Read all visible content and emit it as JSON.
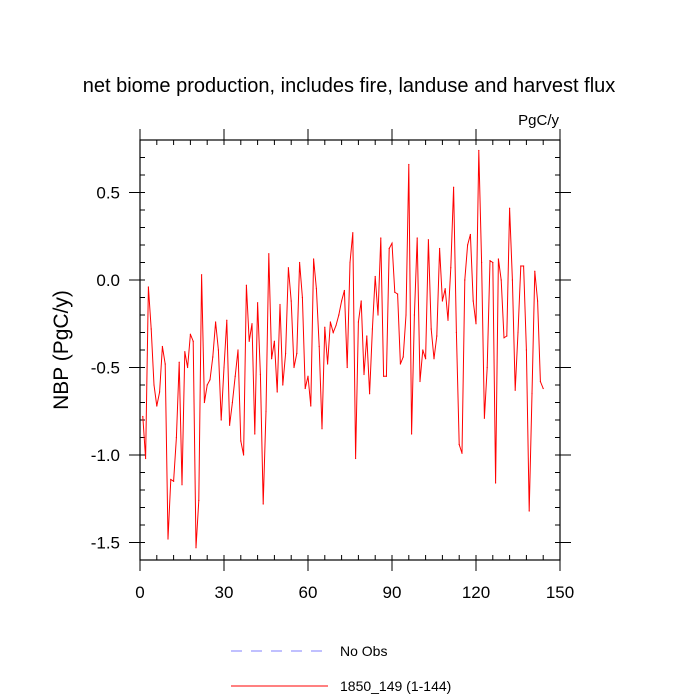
{
  "chart_data": {
    "type": "line",
    "title": "net biome production, includes fire, landuse and harvest flux",
    "units_label": "PgC/y",
    "xlabel": "",
    "ylabel": "NBP  (PgC/y)",
    "xlim": [
      0,
      150
    ],
    "ylim": [
      -1.6,
      0.8
    ],
    "x_major_ticks": [
      0,
      30,
      60,
      90,
      120,
      150
    ],
    "x_tick_labels": [
      "0",
      "30",
      "60",
      "90",
      "120",
      "150"
    ],
    "x_minor_step": 6,
    "y_major_ticks": [
      -1.5,
      -1.0,
      -0.5,
      0.0,
      0.5
    ],
    "y_tick_labels": [
      "-1.5",
      "-1.0",
      "-0.5",
      "0.0",
      "0.5"
    ],
    "y_minor_step": 0.1,
    "legend_position": "bottom",
    "legend": [
      {
        "label": "No Obs",
        "color": "#8080ff",
        "style": "dashed"
      },
      {
        "label": "1850_149 (1-144)",
        "color": "#ff0000",
        "style": "solid"
      }
    ],
    "series": [
      {
        "name": "1850_149 (1-144)",
        "color": "#ff0000",
        "x": [
          1,
          2,
          3,
          4,
          5,
          6,
          7,
          8,
          9,
          10,
          11,
          12,
          13,
          14,
          15,
          16,
          17,
          18,
          19,
          20,
          21,
          22,
          23,
          24,
          25,
          26,
          27,
          28,
          29,
          30,
          31,
          32,
          33,
          34,
          35,
          36,
          37,
          38,
          39,
          40,
          41,
          42,
          43,
          44,
          45,
          46,
          47,
          48,
          49,
          50,
          51,
          52,
          53,
          54,
          55,
          56,
          57,
          58,
          59,
          60,
          61,
          62,
          63,
          64,
          65,
          66,
          67,
          68,
          69,
          70,
          71,
          72,
          73,
          74,
          75,
          76,
          77,
          78,
          79,
          80,
          81,
          82,
          83,
          84,
          85,
          86,
          87,
          88,
          89,
          90,
          91,
          92,
          93,
          94,
          95,
          96,
          97,
          98,
          99,
          100,
          101,
          102,
          103,
          104,
          105,
          106,
          107,
          108,
          109,
          110,
          111,
          112,
          113,
          114,
          115,
          116,
          117,
          118,
          119,
          120,
          121,
          122,
          123,
          124,
          125,
          126,
          127,
          128,
          129,
          130,
          131,
          132,
          133,
          134,
          135,
          136,
          137,
          138,
          139,
          140,
          141,
          142,
          143,
          144
        ],
        "values": [
          -0.78,
          -1.02,
          -0.04,
          -0.28,
          -0.6,
          -0.72,
          -0.64,
          -0.38,
          -0.48,
          -1.48,
          -1.14,
          -1.15,
          -0.9,
          -0.47,
          -1.17,
          -0.41,
          -0.5,
          -0.31,
          -0.35,
          -1.53,
          -1.26,
          0.03,
          -0.7,
          -0.6,
          -0.57,
          -0.44,
          -0.24,
          -0.4,
          -0.8,
          -0.5,
          -0.23,
          -0.83,
          -0.7,
          -0.55,
          -0.4,
          -0.92,
          -1.0,
          -0.03,
          -0.35,
          -0.25,
          -0.88,
          -0.13,
          -0.54,
          -1.28,
          -0.75,
          0.15,
          -0.45,
          -0.35,
          -0.64,
          -0.14,
          -0.6,
          -0.42,
          0.07,
          -0.12,
          -0.5,
          -0.42,
          0.1,
          -0.1,
          -0.62,
          -0.55,
          -0.72,
          0.12,
          -0.05,
          -0.38,
          -0.85,
          -0.27,
          -0.48,
          -0.24,
          -0.3,
          -0.26,
          -0.2,
          -0.12,
          -0.06,
          -0.5,
          0.1,
          0.27,
          -1.02,
          -0.24,
          -0.12,
          -0.54,
          -0.32,
          -0.65,
          -0.28,
          0.02,
          -0.2,
          0.24,
          -0.55,
          -0.55,
          0.18,
          0.21,
          -0.07,
          -0.08,
          -0.48,
          -0.44,
          -0.2,
          0.66,
          -0.88,
          -0.2,
          0.24,
          -0.58,
          -0.4,
          -0.45,
          0.23,
          -0.28,
          -0.45,
          -0.32,
          0.18,
          -0.12,
          -0.05,
          -0.23,
          0.07,
          0.53,
          -0.3,
          -0.94,
          -0.99,
          0.0,
          0.2,
          0.26,
          -0.12,
          -0.25,
          0.74,
          0.1,
          -0.79,
          -0.5,
          0.11,
          0.1,
          -1.16,
          0.12,
          0.0,
          -0.33,
          -0.32,
          0.41,
          0.0,
          -0.63,
          -0.3,
          0.08,
          0.08,
          -0.4,
          -1.32,
          -0.65,
          0.05,
          -0.12,
          -0.58,
          -0.62
        ]
      }
    ]
  }
}
